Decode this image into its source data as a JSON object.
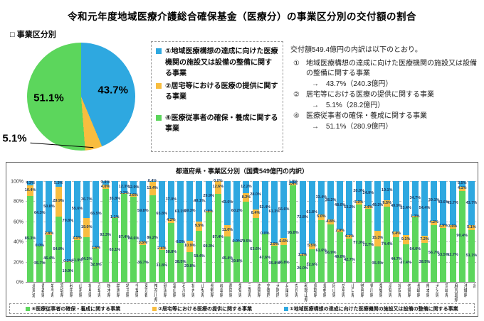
{
  "title": "令和元年度地域医療介護総合確保基金（医療分）の事業区分別の交付額の割合",
  "section_label": "□ 事業区分別",
  "colors": {
    "cat1_blue": "#2EA8E0",
    "cat2_yellow": "#F8BD3F",
    "cat4_green": "#5CD65C",
    "bar_label": "#17365D"
  },
  "pie": {
    "slices": [
      {
        "name": "①地域医療構想の達成に向けた医療機関の施設又は設備の整備に関する事業",
        "value": 43.7,
        "label": "43.7%",
        "color_key": "cat1_blue"
      },
      {
        "name": "②居宅等における医療の提供に関する事業",
        "value": 5.1,
        "label": "5.1%",
        "color_key": "cat2_yellow"
      },
      {
        "name": "④医療従事者の確保・養成に関する事業",
        "value": 51.1,
        "label": "51.1%",
        "color_key": "cat4_green"
      }
    ]
  },
  "legend_box": {
    "items": [
      {
        "text": "①地域医療構想の達成に向けた医療機関の施設又は設備の整備に関する事業",
        "color_key": "cat1_blue",
        "gap": false
      },
      {
        "text": "②居宅等における医療の提供に関する事業",
        "color_key": "cat2_yellow",
        "gap": false
      },
      {
        "text": "④医療従事者の確保・養成に関する事業",
        "color_key": "cat4_green",
        "gap": true
      }
    ]
  },
  "breakdown": {
    "intro": "交付額549.4億円の内訳は以下のとおり。",
    "items": [
      {
        "num": "①",
        "text": "地域医療構想の達成に向けた医療機関の施設又は設備の整備に関する事業",
        "result": "→　43.7%（240.3億円）"
      },
      {
        "num": "②",
        "text": "居宅等における医療の提供に関する事業",
        "result": "→　5.1%（28.2億円）"
      },
      {
        "num": "④",
        "text": "医療従事者の確保・養成に関する事業",
        "result": "→　51.1%（280.9億円）"
      }
    ]
  },
  "chart_data": {
    "type": "bar",
    "subtype": "stacked-100",
    "title": "都道府県・事業区分別（国費549億円の内訳）",
    "ylim": [
      0,
      100
    ],
    "y_ticks": [
      "0%",
      "20%",
      "40%",
      "60%",
      "80%",
      "100%"
    ],
    "grid": "horizontal-dashed",
    "legend_position": "bottom",
    "categories": [
      "北海道",
      "青森県",
      "岩手県",
      "宮城県",
      "秋田県",
      "山形県",
      "福島県",
      "茨城県",
      "栃木県",
      "群馬県",
      "埼玉県",
      "千葉県",
      "東京都",
      "神奈川県",
      "新潟県",
      "富山県",
      "石川県",
      "福井県",
      "山梨県",
      "長野県",
      "岐阜県",
      "静岡県",
      "愛知県",
      "三重県",
      "滋賀県",
      "京都府",
      "大阪府",
      "兵庫県",
      "奈良県",
      "和歌山県",
      "鳥取県",
      "島根県",
      "岡山県",
      "広島県",
      "山口県",
      "徳島県",
      "香川県",
      "愛媛県",
      "高知県",
      "福岡県",
      "佐賀県",
      "長崎県",
      "熊本県",
      "大分県",
      "宮崎県",
      "鹿児島県",
      "沖縄県",
      "計"
    ],
    "series": [
      {
        "name": "④医療従事者の確保・養成に関する事業",
        "color_key": "cat4_green",
        "values": [
          85.3,
          35.7,
          46.4,
          64.8,
          19.9,
          41.9,
          44.3,
          32.9,
          92.3,
          63.1,
          87.4,
          84.6,
          36.7,
          86.2,
          31.8,
          58.8,
          38.5,
          29.8,
          50.4,
          69.3,
          87.4,
          45.4,
          39.8,
          79.5,
          63.6,
          47.6,
          35.8,
          36.8,
          95.8,
          26.0,
          32.6,
          61.6,
          56.9,
          49.0,
          42.7,
          77.0,
          72.7,
          35.5,
          74.4,
          44.7,
          37.4,
          64.0,
          38.5,
          56.7,
          53.5,
          52.7,
          90.4,
          51.1
        ]
      },
      {
        "name": "②居宅等における医療の提供に関する事業",
        "color_key": "cat2_yellow",
        "values": [
          10.4,
          0.0,
          2.8,
          29.9,
          0.3,
          2.5,
          19.0,
          1.6,
          4.0,
          1.1,
          0.3,
          2.6,
          3.5,
          13.4,
          2.4,
          4.2,
          0.5,
          10.9,
          9.5,
          0.8,
          12.6,
          11.0,
          0.0,
          8.2,
          8.4,
          0.0,
          2.9,
          6.6,
          2.4,
          1.2,
          5.5,
          5.0,
          4.8,
          2.9,
          4.1,
          3.0,
          2.4,
          15.3,
          6.5,
          5.4,
          9.1,
          1.3,
          7.2,
          4.2,
          2.9,
          3.6,
          4.1,
          5.1
        ]
      },
      {
        "name": "①地域医療構想の達成に向けた医療機関の施設又は設備の整備に関する事業",
        "color_key": "cat1_blue",
        "values": [
          4.3,
          64.3,
          50.8,
          5.3,
          79.8,
          55.6,
          36.7,
          65.5,
          3.8,
          35.8,
          12.3,
          12.9,
          59.8,
          0.4,
          65.8,
          37.0,
          61.1,
          59.3,
          40.1,
          29.9,
          0.0,
          43.6,
          60.2,
          12.2,
          28.0,
          52.4,
          61.3,
          56.6,
          1.8,
          72.8,
          61.8,
          33.4,
          38.2,
          48.0,
          53.2,
          20.0,
          24.9,
          49.2,
          19.1,
          49.9,
          53.4,
          34.7,
          54.4,
          39.1,
          43.6,
          43.7,
          5.5,
          43.7
        ]
      }
    ]
  }
}
